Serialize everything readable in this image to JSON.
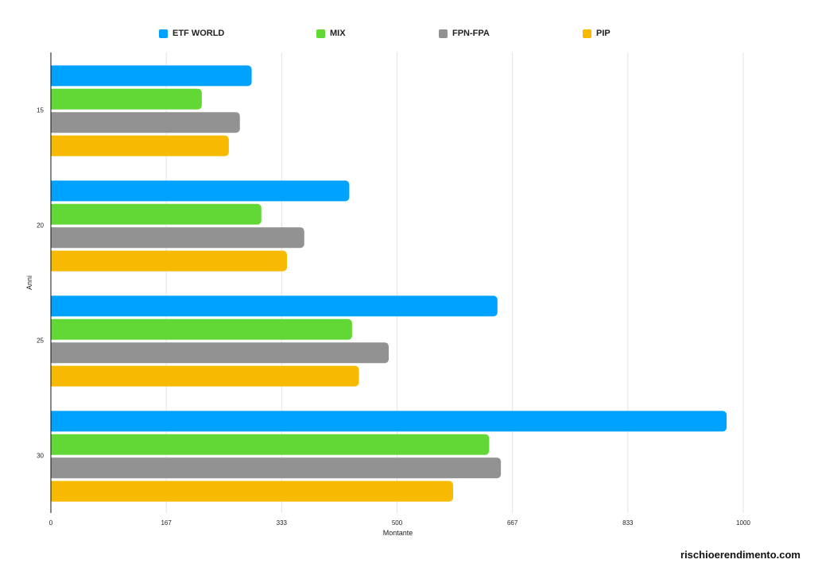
{
  "chart_data": {
    "type": "bar",
    "orientation": "horizontal",
    "title": "",
    "xlabel": "Montante",
    "ylabel": "Anni",
    "categories": [
      "15",
      "20",
      "25",
      "30"
    ],
    "xlim": [
      0,
      1000
    ],
    "x_ticks": [
      "0",
      "167",
      "333",
      "500",
      "667",
      "833",
      "1000"
    ],
    "x_tick_values": [
      0,
      166.67,
      333.33,
      500,
      666.67,
      833.33,
      1000
    ],
    "grid": true,
    "legend_position": "top",
    "series": [
      {
        "name": "ETF WORLD",
        "color": "#00a2ff",
        "values": [
          290,
          431,
          645,
          976
        ]
      },
      {
        "name": "MIX",
        "color": "#61d836",
        "values": [
          218,
          304,
          435,
          633
        ]
      },
      {
        "name": "FPN-FPA",
        "color": "#929292",
        "values": [
          273,
          366,
          488,
          650
        ]
      },
      {
        "name": "PIP",
        "color": "#f8ba00",
        "values": [
          257,
          341,
          445,
          581
        ]
      }
    ]
  },
  "watermark": "rischioerendimento.com"
}
